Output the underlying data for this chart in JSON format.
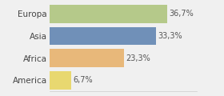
{
  "categories": [
    "Europa",
    "Asia",
    "Africa",
    "America"
  ],
  "values": [
    36.7,
    33.3,
    23.3,
    6.7
  ],
  "labels": [
    "36,7%",
    "33,3%",
    "23,3%",
    "6,7%"
  ],
  "bar_colors": [
    "#b5c98a",
    "#7090b8",
    "#e8b87a",
    "#e8d870"
  ],
  "background_color": "#f0f0f0",
  "xlim": [
    0,
    46
  ],
  "bar_height": 0.82,
  "label_fontsize": 7,
  "category_fontsize": 7.5
}
